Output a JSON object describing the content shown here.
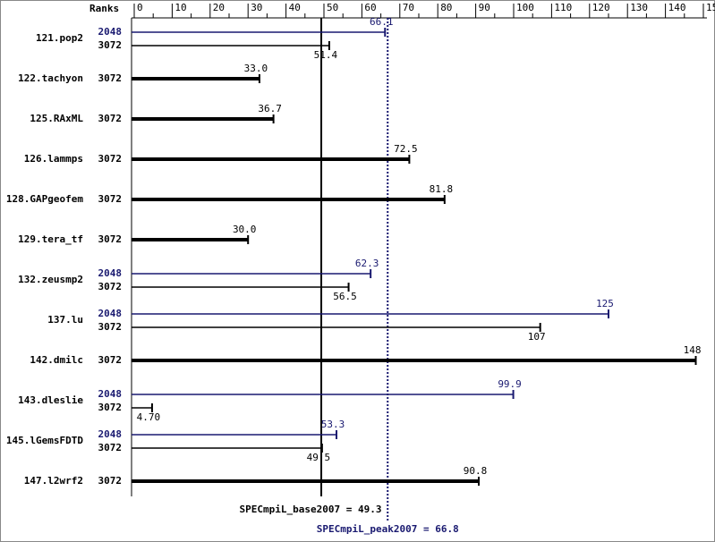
{
  "chart_data": {
    "type": "spec-ranks",
    "axis_label": "Ranks",
    "xlim": [
      0,
      150
    ],
    "xticks": [
      0,
      10,
      20,
      30,
      40,
      50,
      60,
      70,
      80,
      90,
      100,
      110,
      120,
      130,
      140,
      150
    ],
    "benchmarks": [
      {
        "name": "121.pop2",
        "runs": [
          {
            "ranks": "2048",
            "value": 66.1,
            "value_label": "66.1",
            "color": "#191970"
          },
          {
            "ranks": "3072",
            "value": 51.4,
            "value_label": "51.4",
            "color": "#000000"
          }
        ]
      },
      {
        "name": "122.tachyon",
        "runs": [
          {
            "ranks": "3072",
            "value": 33.0,
            "value_label": "33.0",
            "color": "#000000"
          }
        ]
      },
      {
        "name": "125.RAxML",
        "runs": [
          {
            "ranks": "3072",
            "value": 36.7,
            "value_label": "36.7",
            "color": "#000000"
          }
        ]
      },
      {
        "name": "126.lammps",
        "runs": [
          {
            "ranks": "3072",
            "value": 72.5,
            "value_label": "72.5",
            "color": "#000000"
          }
        ]
      },
      {
        "name": "128.GAPgeofem",
        "runs": [
          {
            "ranks": "3072",
            "value": 81.8,
            "value_label": "81.8",
            "color": "#000000"
          }
        ]
      },
      {
        "name": "129.tera_tf",
        "runs": [
          {
            "ranks": "3072",
            "value": 30.0,
            "value_label": "30.0",
            "color": "#000000"
          }
        ]
      },
      {
        "name": "132.zeusmp2",
        "runs": [
          {
            "ranks": "2048",
            "value": 62.3,
            "value_label": "62.3",
            "color": "#191970"
          },
          {
            "ranks": "3072",
            "value": 56.5,
            "value_label": "56.5",
            "color": "#000000"
          }
        ]
      },
      {
        "name": "137.lu",
        "runs": [
          {
            "ranks": "2048",
            "value": 125,
            "value_label": "125",
            "color": "#191970"
          },
          {
            "ranks": "3072",
            "value": 107,
            "value_label": "107",
            "color": "#000000"
          }
        ]
      },
      {
        "name": "142.dmilc",
        "runs": [
          {
            "ranks": "3072",
            "value": 148,
            "value_label": "148",
            "color": "#000000"
          }
        ]
      },
      {
        "name": "143.dleslie",
        "runs": [
          {
            "ranks": "2048",
            "value": 99.9,
            "value_label": "99.9",
            "color": "#191970"
          },
          {
            "ranks": "3072",
            "value": 4.7,
            "value_label": "4.70",
            "color": "#000000"
          }
        ]
      },
      {
        "name": "145.lGemsFDTD",
        "runs": [
          {
            "ranks": "2048",
            "value": 53.3,
            "value_label": "53.3",
            "color": "#191970"
          },
          {
            "ranks": "3072",
            "value": 49.5,
            "value_label": "49.5",
            "color": "#000000"
          }
        ]
      },
      {
        "name": "147.l2wrf2",
        "runs": [
          {
            "ranks": "3072",
            "value": 90.8,
            "value_label": "90.8",
            "color": "#000000"
          }
        ]
      }
    ],
    "base_mean": {
      "label": "SPECmpiL_base2007 = 49.3",
      "value": 49.3,
      "color": "#000000"
    },
    "peak_mean": {
      "label": "SPECmpiL_peak2007 = 66.8",
      "value": 66.8,
      "color": "#191970"
    }
  }
}
